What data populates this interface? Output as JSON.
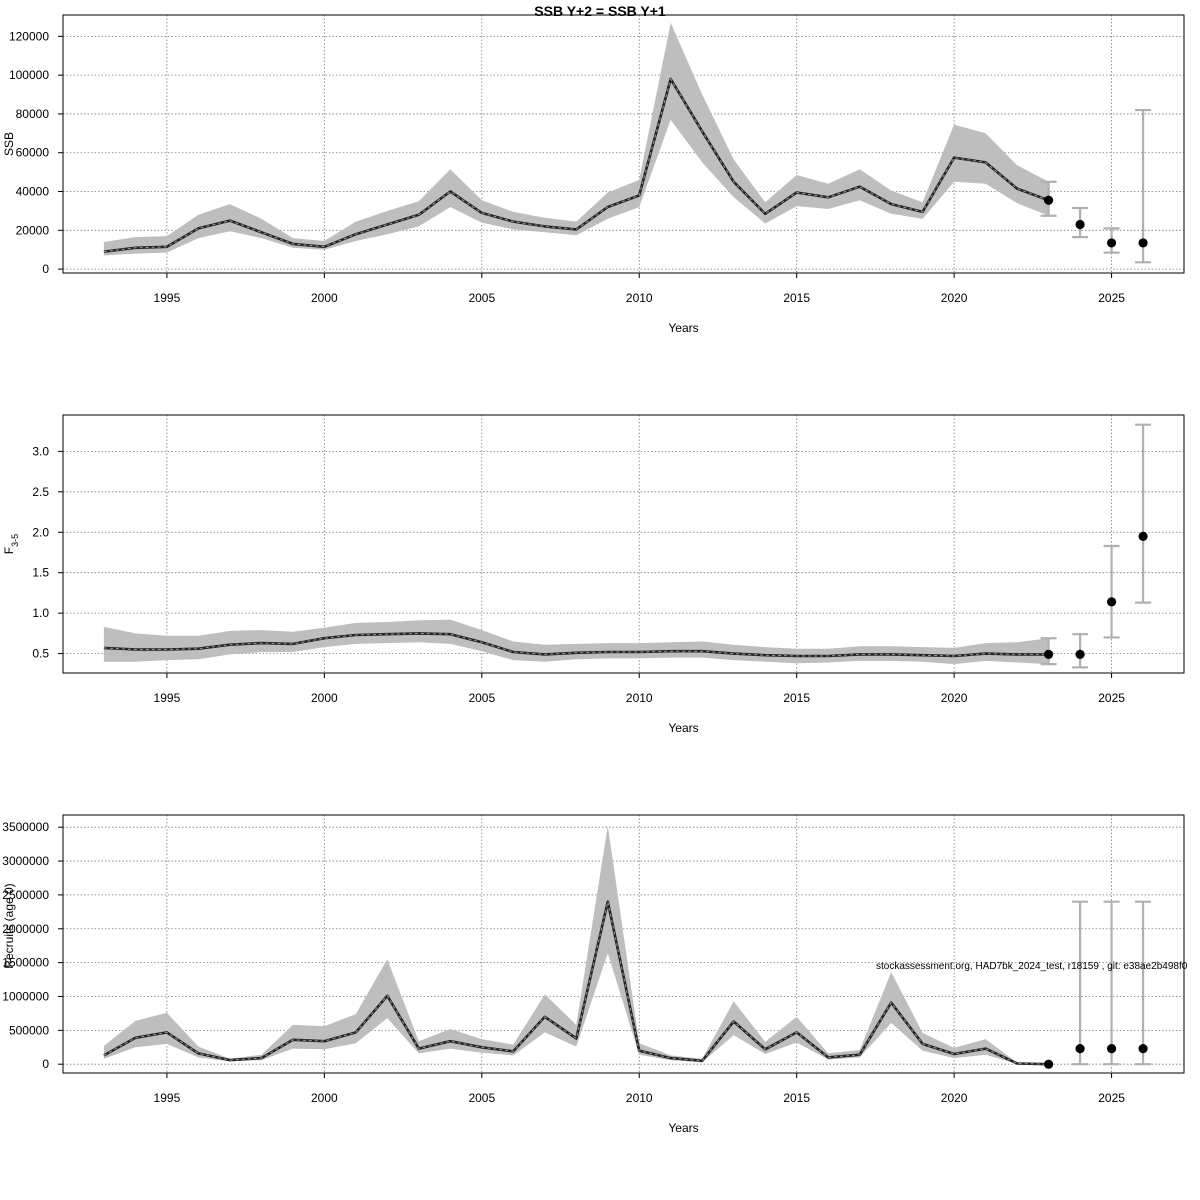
{
  "chart_data": [
    {
      "type": "line",
      "title": "SSB Y+2 = SSB Y+1",
      "xlabel": "Years",
      "ylabel": "SSB",
      "ylabel_sub": "",
      "grid": true,
      "xlim": [
        1991.7,
        2027.3
      ],
      "ylim": [
        -2000,
        131000
      ],
      "xticks": [
        1995,
        2000,
        2005,
        2010,
        2015,
        2020,
        2025
      ],
      "yticks": [
        0,
        20000,
        40000,
        60000,
        80000,
        100000,
        120000
      ],
      "series": [
        {
          "x": [
            1993,
            1994,
            1995,
            1996,
            1997,
            1998,
            1999,
            2000,
            2001,
            2002,
            2003,
            2004,
            2005,
            2006,
            2007,
            2008,
            2009,
            2010,
            2011,
            2012,
            2013,
            2014,
            2015,
            2016,
            2017,
            2018,
            2019,
            2020,
            2021,
            2022,
            2023
          ],
          "y": [
            9000,
            11000,
            11500,
            21000,
            25000,
            19000,
            13000,
            11500,
            18000,
            23000,
            28000,
            40000,
            29000,
            24500,
            22000,
            20500,
            32000,
            38000,
            98000,
            71000,
            45000,
            28500,
            39500,
            37000,
            42500,
            33500,
            29500,
            57500,
            55000,
            41500,
            35500
          ],
          "lower": [
            7000,
            8000,
            8500,
            16000,
            19500,
            16000,
            11000,
            10000,
            14500,
            18000,
            22000,
            32000,
            24000,
            20500,
            19000,
            17500,
            26000,
            32000,
            77000,
            55000,
            37000,
            23500,
            32500,
            31000,
            35500,
            28500,
            26000,
            45000,
            44000,
            34000,
            27500
          ],
          "upper": [
            14000,
            16500,
            17000,
            28000,
            33500,
            26000,
            16000,
            14500,
            24500,
            30000,
            35000,
            51500,
            35500,
            29500,
            26500,
            24500,
            39500,
            46000,
            127000,
            90000,
            56500,
            34500,
            48500,
            44000,
            51500,
            40500,
            34500,
            74500,
            70000,
            53500,
            45000
          ]
        }
      ],
      "forecast": {
        "x": [
          2023,
          2024,
          2025,
          2026
        ],
        "y": [
          35500,
          23000,
          13500,
          13500
        ],
        "lower": [
          27500,
          16500,
          8500,
          3500
        ],
        "upper": [
          45000,
          31500,
          21000,
          82000
        ]
      }
    },
    {
      "type": "line",
      "title": "",
      "xlabel": "Years",
      "ylabel": "F",
      "ylabel_sub": "3-5",
      "grid": true,
      "xlim": [
        1991.7,
        2027.3
      ],
      "ylim": [
        0.26,
        3.45
      ],
      "xticks": [
        1995,
        2000,
        2005,
        2010,
        2015,
        2020,
        2025
      ],
      "yticks": [
        0.5,
        1.0,
        1.5,
        2.0,
        2.5,
        3.0
      ],
      "ytick_labels": [
        "0.5",
        "1.0",
        "1.5",
        "2.0",
        "2.5",
        "3.0"
      ],
      "series": [
        {
          "x": [
            1993,
            1994,
            1995,
            1996,
            1997,
            1998,
            1999,
            2000,
            2001,
            2002,
            2003,
            2004,
            2005,
            2006,
            2007,
            2008,
            2009,
            2010,
            2011,
            2012,
            2013,
            2014,
            2015,
            2016,
            2017,
            2018,
            2019,
            2020,
            2021,
            2022,
            2023
          ],
          "y": [
            0.57,
            0.55,
            0.55,
            0.56,
            0.61,
            0.63,
            0.62,
            0.69,
            0.73,
            0.74,
            0.75,
            0.74,
            0.64,
            0.52,
            0.49,
            0.51,
            0.52,
            0.52,
            0.53,
            0.53,
            0.5,
            0.48,
            0.47,
            0.47,
            0.49,
            0.49,
            0.48,
            0.47,
            0.5,
            0.49,
            0.49
          ],
          "lower": [
            0.4,
            0.4,
            0.42,
            0.43,
            0.49,
            0.52,
            0.52,
            0.58,
            0.62,
            0.63,
            0.64,
            0.62,
            0.53,
            0.42,
            0.4,
            0.43,
            0.44,
            0.44,
            0.45,
            0.45,
            0.42,
            0.4,
            0.38,
            0.39,
            0.41,
            0.41,
            0.4,
            0.37,
            0.41,
            0.39,
            0.37
          ],
          "upper": [
            0.83,
            0.75,
            0.72,
            0.72,
            0.78,
            0.79,
            0.77,
            0.82,
            0.88,
            0.89,
            0.91,
            0.92,
            0.79,
            0.65,
            0.61,
            0.62,
            0.63,
            0.63,
            0.64,
            0.65,
            0.61,
            0.58,
            0.56,
            0.56,
            0.59,
            0.59,
            0.58,
            0.57,
            0.63,
            0.64,
            0.69
          ]
        }
      ],
      "forecast": {
        "x": [
          2023,
          2024,
          2025,
          2026
        ],
        "y": [
          0.49,
          0.49,
          1.14,
          1.95
        ],
        "lower": [
          0.37,
          0.33,
          0.7,
          1.13
        ],
        "upper": [
          0.69,
          0.74,
          1.83,
          3.33
        ]
      }
    },
    {
      "type": "line",
      "title": "",
      "xlabel": "Years",
      "ylabel": "Recruits (age 0)",
      "ylabel_sub": "",
      "grid": true,
      "xlim": [
        1991.7,
        2027.3
      ],
      "ylim": [
        -130000,
        3680000
      ],
      "xticks": [
        1995,
        2000,
        2005,
        2010,
        2015,
        2020,
        2025
      ],
      "yticks": [
        0,
        500000,
        1000000,
        1500000,
        2000000,
        2500000,
        3000000,
        3500000
      ],
      "series": [
        {
          "x": [
            1993,
            1994,
            1995,
            1996,
            1997,
            1998,
            1999,
            2000,
            2001,
            2002,
            2003,
            2004,
            2005,
            2006,
            2007,
            2008,
            2009,
            2010,
            2011,
            2012,
            2013,
            2014,
            2015,
            2016,
            2017,
            2018,
            2019,
            2020,
            2021,
            2022,
            2023
          ],
          "y": [
            130000,
            390000,
            470000,
            160000,
            60000,
            90000,
            360000,
            340000,
            470000,
            1010000,
            230000,
            340000,
            250000,
            190000,
            700000,
            380000,
            2400000,
            200000,
            90000,
            50000,
            630000,
            220000,
            470000,
            100000,
            140000,
            910000,
            300000,
            150000,
            230000,
            10000,
            0
          ],
          "lower": [
            80000,
            250000,
            300000,
            100000,
            40000,
            60000,
            230000,
            220000,
            310000,
            680000,
            160000,
            230000,
            170000,
            130000,
            470000,
            260000,
            1640000,
            140000,
            60000,
            30000,
            430000,
            150000,
            320000,
            70000,
            100000,
            610000,
            200000,
            90000,
            140000,
            5000,
            0
          ],
          "upper": [
            270000,
            640000,
            760000,
            260000,
            80000,
            140000,
            580000,
            560000,
            740000,
            1550000,
            340000,
            520000,
            370000,
            290000,
            1030000,
            580000,
            3520000,
            310000,
            130000,
            80000,
            930000,
            330000,
            700000,
            160000,
            210000,
            1360000,
            460000,
            240000,
            370000,
            20000,
            0
          ]
        }
      ],
      "forecast": {
        "x": [
          2023,
          2024,
          2025,
          2026
        ],
        "y": [
          0,
          230000,
          230000,
          230000
        ],
        "lower": [
          0,
          0,
          0,
          0
        ],
        "upper": [
          0,
          2400000,
          2400000,
          2400000
        ]
      }
    }
  ],
  "watermark": "stockassessment.org, HAD7bk_2024_test, r18159 , git: e38ae2b498f0",
  "colors": {
    "band": "#bebebe",
    "line": "#222222",
    "errorbar": "#b0b0b0",
    "point": "#000000",
    "grid": "#7a7a7a"
  }
}
